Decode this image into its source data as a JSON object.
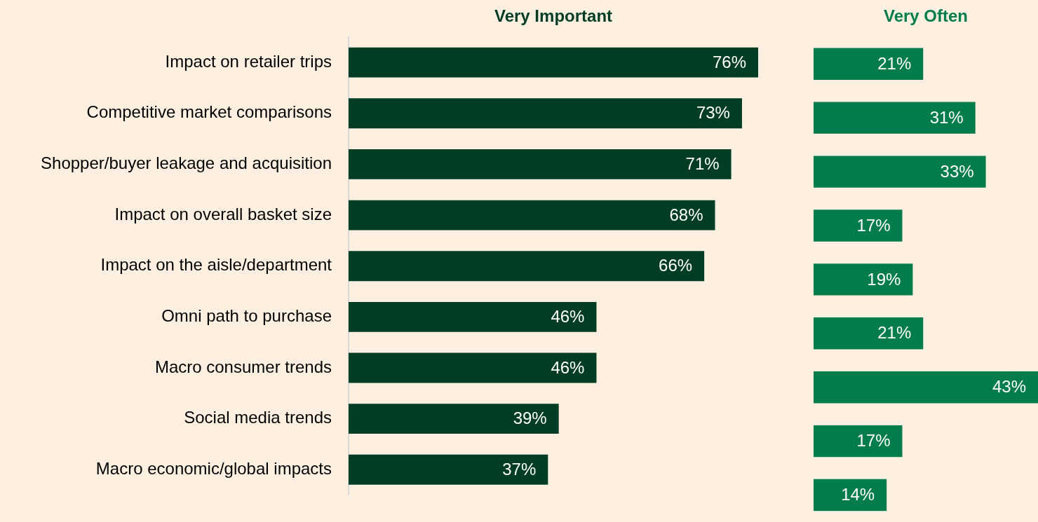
{
  "chart_data": [
    {
      "type": "bar",
      "orientation": "horizontal",
      "title": "Very Important",
      "categories": [
        "Impact on retailer trips",
        "Competitive market comparisons",
        "Shopper/buyer leakage and acquisition",
        "Impact on overall basket size",
        "Impact on the aisle/department",
        "Omni path to purchase",
        "Macro consumer trends",
        "Social media trends",
        "Macro economic/global impacts"
      ],
      "values": [
        76,
        73,
        71,
        68,
        66,
        46,
        46,
        39,
        37
      ],
      "value_labels": [
        "76%",
        "73%",
        "71%",
        "68%",
        "66%",
        "46%",
        "46%",
        "39%",
        "37%"
      ],
      "color": "#013d25",
      "tick_labels": "y",
      "grid": false,
      "legend": false
    },
    {
      "type": "bar",
      "orientation": "horizontal",
      "title": "Very Often",
      "categories": [
        null,
        null,
        null,
        null,
        null,
        null,
        null,
        null,
        null
      ],
      "values": [
        21,
        31,
        33,
        17,
        19,
        21,
        43,
        17,
        14
      ],
      "value_labels": [
        "21%",
        "31%",
        "33%",
        "17%",
        "19%",
        "21%",
        "43%",
        "17%",
        "14%"
      ],
      "color": "#017c4a",
      "tick_labels": false,
      "grid": false,
      "legend": false
    }
  ]
}
